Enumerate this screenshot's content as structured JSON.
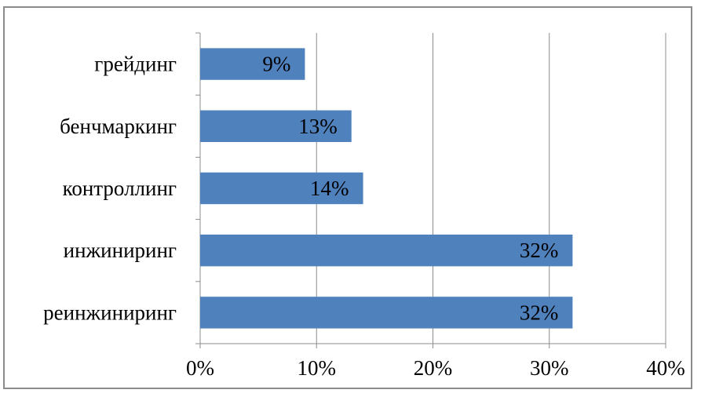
{
  "chart_data": {
    "type": "bar",
    "orientation": "horizontal",
    "categories": [
      "реинжиниринг",
      "инжиниринг",
      "контроллинг",
      "бенчмаркинг",
      "грейдинг"
    ],
    "values": [
      32,
      32,
      14,
      13,
      9
    ],
    "data_labels": [
      "32%",
      "32%",
      "14%",
      "13%",
      "9%"
    ],
    "x_ticks": [
      "0%",
      "10%",
      "20%",
      "30%",
      "40%"
    ],
    "xlim": [
      0,
      40
    ],
    "grid": "vertical",
    "legend": "none",
    "bar_color": "#4f81bd",
    "title": "",
    "xlabel": "",
    "ylabel": ""
  }
}
